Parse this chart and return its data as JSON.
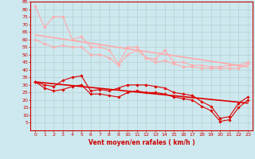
{
  "xlabel": "Vent moyen/en rafales ( km/h )",
  "xlim": [
    -0.5,
    23.5
  ],
  "ylim": [
    0,
    85
  ],
  "yticks": [
    5,
    10,
    15,
    20,
    25,
    30,
    35,
    40,
    45,
    50,
    55,
    60,
    65,
    70,
    75,
    80,
    85
  ],
  "xticks": [
    0,
    1,
    2,
    3,
    4,
    5,
    6,
    7,
    8,
    9,
    10,
    11,
    12,
    13,
    14,
    15,
    16,
    17,
    18,
    19,
    20,
    21,
    22,
    23
  ],
  "bg_color": "#cde8ee",
  "grid_color": "#b0cccc",
  "line1_x": [
    0,
    1,
    2,
    3,
    4,
    5,
    6,
    7,
    8,
    9,
    10,
    11,
    12,
    13,
    14,
    15,
    16,
    17,
    18,
    19,
    20,
    21,
    22,
    23
  ],
  "line1_y": [
    82,
    68,
    75,
    75,
    60,
    62,
    55,
    55,
    53,
    44,
    55,
    55,
    48,
    47,
    53,
    45,
    45,
    43,
    43,
    42,
    42,
    43,
    43,
    45
  ],
  "line1_color": "#ffaaaa",
  "line1_lw": 0.8,
  "line2_x": [
    0,
    1,
    2,
    3,
    4,
    5,
    6,
    7,
    8,
    9,
    10,
    11,
    12,
    13,
    14,
    15,
    16,
    17,
    18,
    19,
    20,
    21,
    22,
    23
  ],
  "line2_y": [
    60,
    57,
    55,
    56,
    55,
    55,
    50,
    50,
    48,
    43,
    50,
    53,
    48,
    45,
    46,
    44,
    42,
    42,
    41,
    41,
    41,
    41,
    41,
    44
  ],
  "line2_color": "#ffaaaa",
  "line2_lw": 0.8,
  "line3_x": [
    0,
    1,
    2,
    3,
    4,
    5,
    6,
    7,
    8,
    9,
    10,
    11,
    12,
    13,
    14,
    15,
    16,
    17,
    18,
    19,
    20,
    21,
    22,
    23
  ],
  "line3_y": [
    32,
    30,
    29,
    33,
    35,
    36,
    26,
    27,
    26,
    28,
    30,
    30,
    30,
    29,
    28,
    25,
    24,
    23,
    19,
    16,
    8,
    9,
    18,
    22
  ],
  "line3_color": "#dd0000",
  "line3_lw": 0.8,
  "line4_x": [
    0,
    1,
    2,
    3,
    4,
    5,
    6,
    7,
    8,
    9,
    10,
    11,
    12,
    13,
    14,
    15,
    16,
    17,
    18,
    19,
    20,
    21,
    22,
    23
  ],
  "line4_y": [
    32,
    28,
    26,
    27,
    29,
    30,
    24,
    24,
    23,
    22,
    25,
    26,
    25,
    25,
    24,
    22,
    21,
    20,
    16,
    13,
    6,
    7,
    15,
    20
  ],
  "line4_color": "#dd0000",
  "line4_lw": 0.8,
  "trend1_x": [
    0,
    23
  ],
  "trend1_y": [
    63,
    42
  ],
  "trend1_color": "#ffaaaa",
  "trend1_lw": 1.2,
  "trend2_x": [
    0,
    23
  ],
  "trend2_y": [
    32,
    18
  ],
  "trend2_color": "#dd0000",
  "trend2_lw": 1.2,
  "marker": "D",
  "marker_size": 1.8,
  "tick_fontsize": 4.5,
  "xlabel_fontsize": 5.5
}
